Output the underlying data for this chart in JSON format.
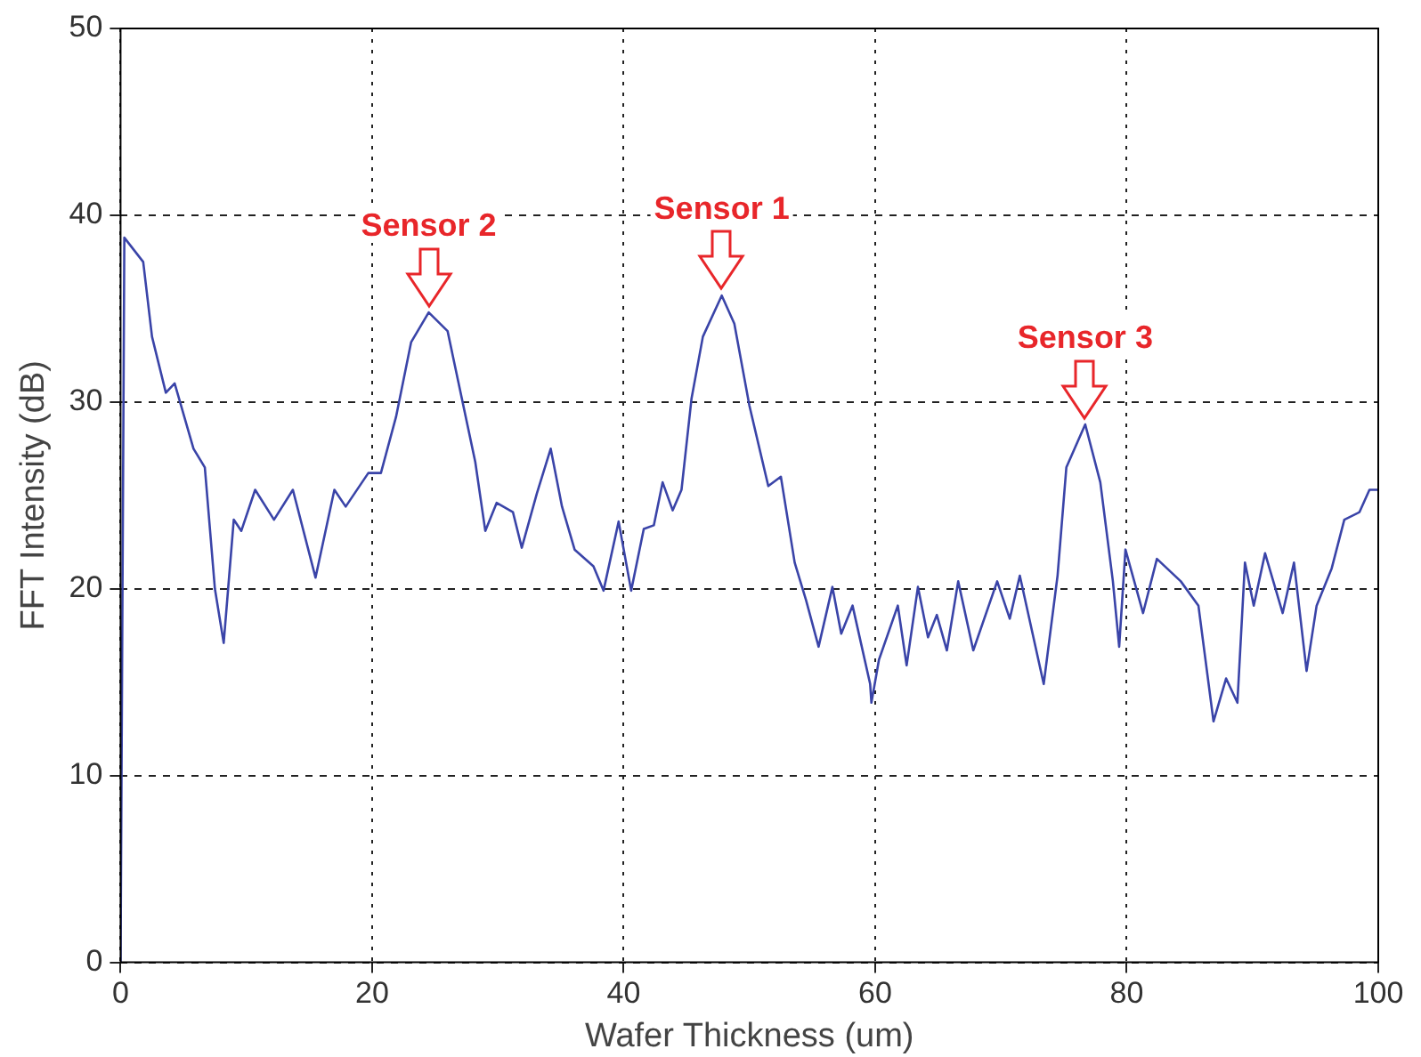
{
  "chart_data": {
    "type": "line",
    "xlabel": "Wafer Thickness (um)",
    "ylabel": "FFT Intensity (dB)",
    "xlim": [
      0,
      100
    ],
    "xticks": [
      0,
      20,
      40,
      60,
      80,
      100
    ],
    "ylim": [
      0,
      50
    ],
    "yticks": [
      0,
      10,
      20,
      30,
      40,
      50
    ],
    "grid": true,
    "legend": false,
    "marker": "none",
    "line_style": "solid",
    "annotations": [
      {
        "text": "Sensor 2",
        "x": 24.5,
        "y": 34.8
      },
      {
        "text": "Sensor 1",
        "x": 47.8,
        "y": 35.7
      },
      {
        "text": "Sensor 3",
        "x": 76.7,
        "y": 28.8
      }
    ],
    "series": [
      {
        "color": "#3a44a8",
        "x": [
          0,
          0.3,
          1.8,
          2.5,
          3.6,
          4.3,
          5.8,
          6.7,
          7.5,
          8.2,
          9,
          9.6,
          10.7,
          12.2,
          13.7,
          15.5,
          17,
          17.9,
          19.7,
          20.7,
          21.9,
          23.1,
          24.5,
          26,
          28.2,
          29,
          29.9,
          31.2,
          31.9,
          33.1,
          34.2,
          35.1,
          36.1,
          37.6,
          38.4,
          39.6,
          40.6,
          41.6,
          42.4,
          43.1,
          43.9,
          44.6,
          45.4,
          46.3,
          47.8,
          48.8,
          50,
          51.5,
          52.5,
          53.6,
          54.5,
          55.5,
          56.6,
          57.3,
          58.2,
          59.6,
          59.7,
          60.3,
          61.8,
          62.5,
          63.4,
          64.2,
          64.9,
          65.7,
          66.6,
          67.8,
          69.7,
          70.7,
          71.5,
          73.4,
          74.5,
          75.2,
          76.7,
          77.9,
          78.9,
          79.4,
          79.9,
          81.3,
          82.4,
          84.3,
          85.7,
          86.9,
          87.9,
          88.8,
          89.4,
          90.1,
          91,
          92.4,
          93.3,
          94.3,
          95.1,
          96.3,
          97.3,
          98.5,
          99.3,
          100
        ],
        "values": [
          0,
          38.8,
          37.5,
          33.5,
          30.5,
          31,
          27.5,
          26.5,
          20,
          17.1,
          23.7,
          23.1,
          25.3,
          23.7,
          25.3,
          20.6,
          25.3,
          24.4,
          26.2,
          26.2,
          29.2,
          33.2,
          34.8,
          33.8,
          26.8,
          23.1,
          24.6,
          24.1,
          22.2,
          25.1,
          27.5,
          24.4,
          22.1,
          21.2,
          19.9,
          23.6,
          19.9,
          23.2,
          23.4,
          25.7,
          24.2,
          25.3,
          30.2,
          33.5,
          35.7,
          34.2,
          29.8,
          25.5,
          26,
          21.4,
          19.4,
          16.9,
          20.1,
          17.6,
          19.1,
          14.9,
          13.9,
          16.2,
          19.1,
          15.9,
          20.1,
          17.4,
          18.6,
          16.7,
          20.4,
          16.7,
          20.4,
          18.4,
          20.7,
          14.9,
          20.7,
          26.5,
          28.8,
          25.7,
          20.4,
          16.9,
          22.1,
          18.7,
          21.6,
          20.4,
          19.1,
          12.9,
          15.2,
          13.9,
          21.4,
          19.1,
          21.9,
          18.7,
          21.4,
          15.6,
          19.1,
          21.1,
          23.7,
          24.1,
          25.3,
          25.3
        ]
      }
    ]
  }
}
